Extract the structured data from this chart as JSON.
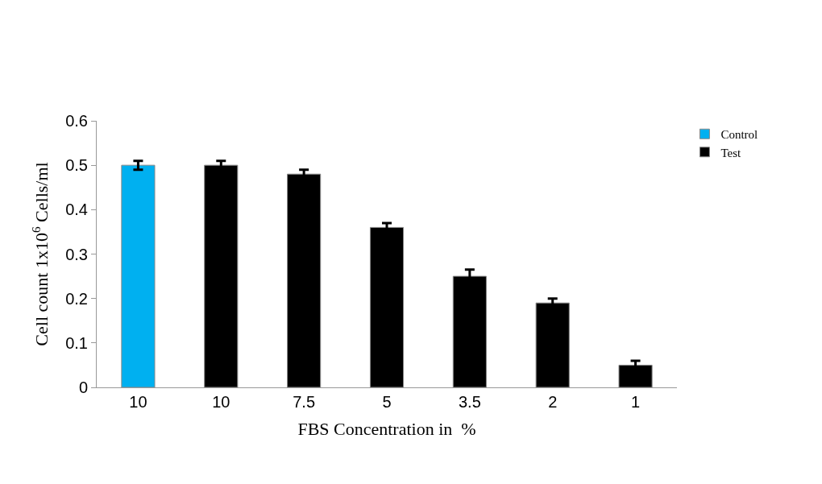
{
  "chart_data": {
    "type": "bar",
    "categories": [
      "10",
      "10",
      "7.5",
      "5",
      "3.5",
      "2",
      "1"
    ],
    "xlabel": "FBS Concentration in  %",
    "ylabel": "Cell count 1x10$^{6}$ Cells/ml",
    "series": [
      {
        "name": "Control",
        "color": "#00b0f0",
        "values": [
          0.5,
          null,
          null,
          null,
          null,
          null,
          null
        ],
        "errors": [
          0.01,
          null,
          null,
          null,
          null,
          null,
          null
        ]
      },
      {
        "name": "Test",
        "color": "#000000",
        "values": [
          null,
          0.5,
          0.48,
          0.36,
          0.25,
          0.19,
          0.05
        ],
        "errors": [
          null,
          0.01,
          0.01,
          0.01,
          0.015,
          0.01,
          0.01
        ]
      }
    ],
    "ylim": [
      0,
      0.6
    ],
    "yticks": [
      0,
      0.1,
      0.2,
      0.3,
      0.4,
      0.5,
      0.6
    ],
    "legend": "top right"
  }
}
